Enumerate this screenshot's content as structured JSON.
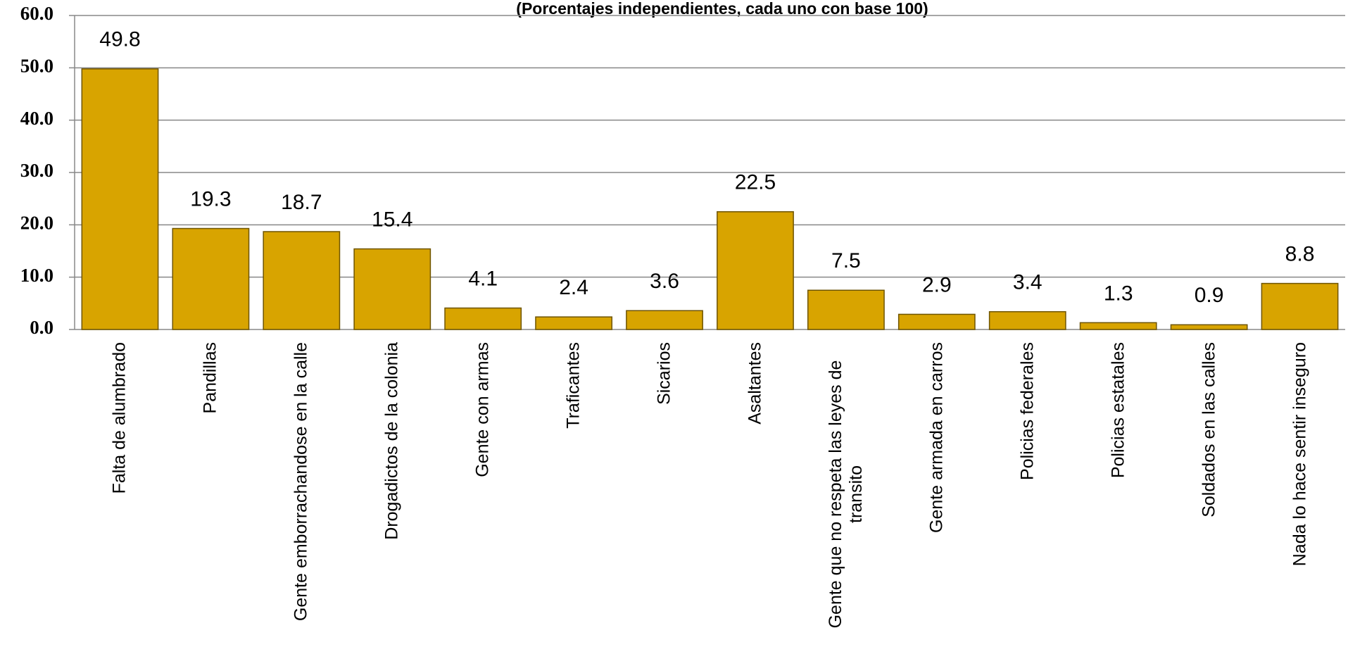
{
  "chart_data": {
    "type": "bar",
    "subtitle": "(Porcentajes independientes, cada uno con base 100)",
    "categories": [
      "Falta de alumbrado",
      "Pandillas",
      "Gente emborrachandose en la calle",
      "Drogadictos de la colonia",
      "Gente con armas",
      "Traficantes",
      "Sicarios",
      "Asaltantes",
      "Gente que no respeta las leyes de transito",
      "Gente armada en carros",
      "Policias federales",
      "Policias estatales",
      "Soldados en las calles",
      "Nada lo hace sentir inseguro"
    ],
    "values": [
      49.8,
      19.3,
      18.7,
      15.4,
      4.1,
      2.4,
      3.6,
      22.5,
      7.5,
      2.9,
      3.4,
      1.3,
      0.9,
      8.8
    ],
    "color": "#d8a400",
    "ylim": [
      0,
      60
    ],
    "yticks": [
      {
        "value": 0,
        "label": "0.0"
      },
      {
        "value": 10,
        "label": "10.0"
      },
      {
        "value": 20,
        "label": "20.0"
      },
      {
        "value": 30,
        "label": "30.0"
      },
      {
        "value": 40,
        "label": "40.0"
      },
      {
        "value": 50,
        "label": "50.0"
      },
      {
        "value": 60,
        "label": "60.0"
      }
    ],
    "grid": true
  }
}
